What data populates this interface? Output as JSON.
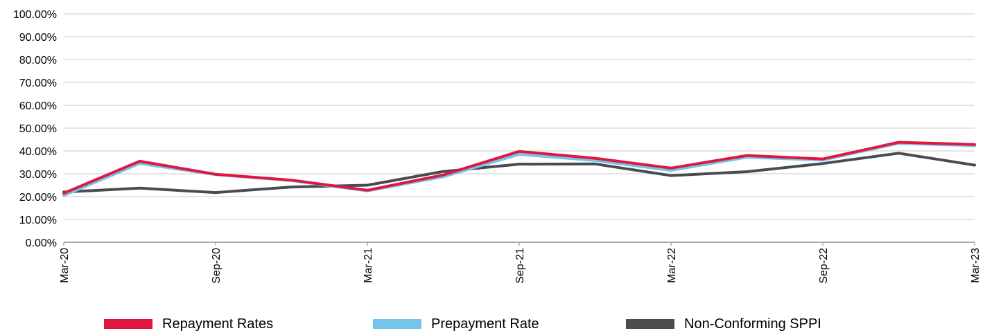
{
  "chart_data": {
    "type": "line",
    "title": "",
    "xlabel": "",
    "ylabel": "",
    "ylim": [
      0,
      100
    ],
    "y_ticks": [
      "0.00%",
      "10.00%",
      "20.00%",
      "30.00%",
      "40.00%",
      "50.00%",
      "60.00%",
      "70.00%",
      "80.00%",
      "90.00%",
      "100.00%"
    ],
    "x_ticks": [
      "Mar-20",
      "Sep-20",
      "Mar-21",
      "Sep-21",
      "Mar-22",
      "Sep-22",
      "Mar-23"
    ],
    "x": [
      "Mar-20",
      "Jun-20",
      "Sep-20",
      "Dec-20",
      "Mar-21",
      "Jun-21",
      "Sep-21",
      "Dec-21",
      "Mar-22",
      "Jun-22",
      "Sep-22",
      "Dec-22",
      "Mar-23"
    ],
    "grid": "horizontal",
    "legend_position": "bottom",
    "series": [
      {
        "name": "Repayment Rates",
        "color": "#e0173f",
        "values": [
          21.5,
          35.5,
          29.8,
          27.2,
          22.8,
          29.5,
          39.8,
          36.8,
          32.5,
          38.0,
          36.5,
          43.8,
          42.8
        ]
      },
      {
        "name": "Prepayment Rate",
        "color": "#74c5ea",
        "values": [
          20.5,
          34.5,
          29.6,
          27.0,
          22.5,
          28.7,
          38.5,
          35.8,
          31.5,
          37.2,
          36.0,
          43.3,
          42.3
        ]
      },
      {
        "name": "Non-Conforming SPPI",
        "color": "#4a4b4f",
        "values": [
          22.0,
          23.7,
          21.8,
          24.2,
          25.0,
          31.0,
          34.2,
          34.3,
          29.2,
          30.9,
          34.5,
          39.0,
          33.8
        ]
      }
    ]
  }
}
